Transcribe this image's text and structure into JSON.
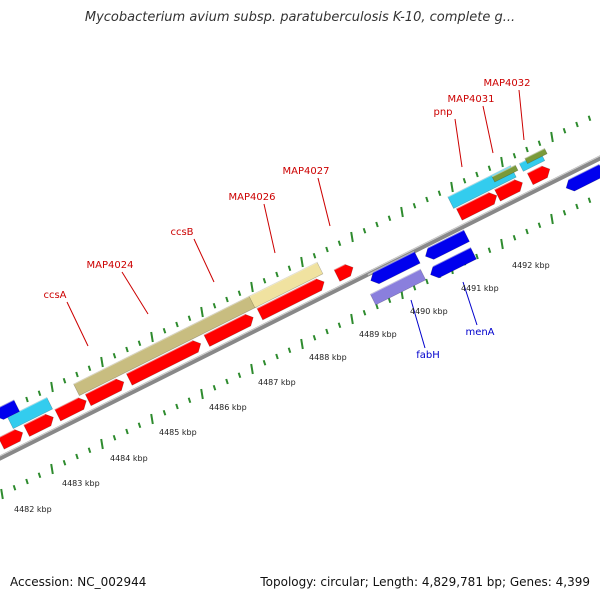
{
  "title": "Mycobacterium avium subsp. paratuberculosis K-10, complete g...",
  "footer": {
    "accession": "Accession: NC_002944",
    "topology": "Topology: circular; Length: 4,829,781 bp; Genes: 4,399"
  },
  "colors": {
    "backbone": "#888888",
    "cds": "#ff0000",
    "reverse_cds": "#0000ee",
    "tick": "#2e8b2e",
    "forward_label": "#cc0000",
    "reverse_label": "#0000cc",
    "cyan_feature": "#33ccee",
    "tan_feature": "#c8bd80",
    "pale_feature": "#f0e2a0",
    "olive_feature": "#7a9a3a",
    "purple_feature": "#8a7fdd"
  },
  "scale_labels": [
    "4482 kbp",
    "4483 kbp",
    "4484 kbp",
    "4485 kbp",
    "4486 kbp",
    "4487 kbp",
    "4488 kbp",
    "4489 kbp",
    "4490 kbp",
    "4491 kbp",
    "4492 kbp"
  ],
  "forward_genes": [
    "ccsA",
    "MAP4024",
    "ccsB",
    "MAP4026",
    "MAP4027",
    "pnp",
    "MAP4031",
    "MAP4032"
  ],
  "reverse_genes": [
    "fabH",
    "menA"
  ]
}
